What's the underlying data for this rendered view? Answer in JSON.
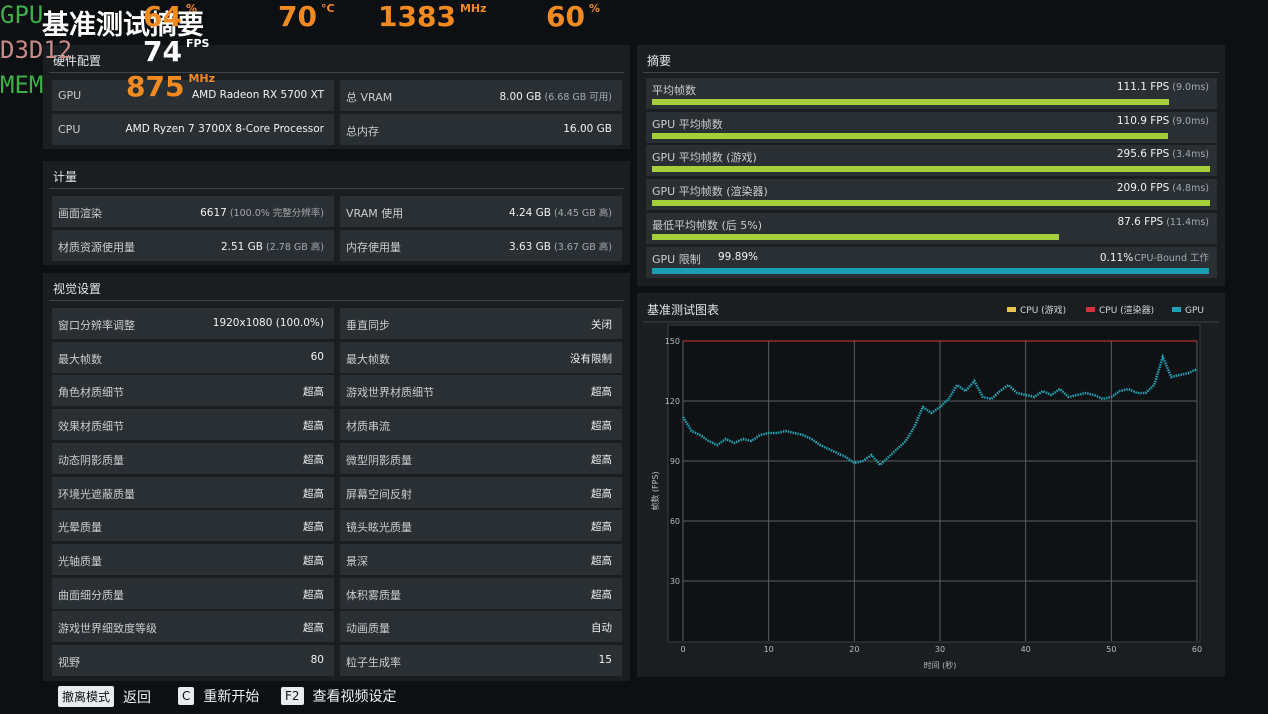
{
  "title": "基准测试摘要",
  "overlay": {
    "rows": [
      {
        "label": "GPU",
        "label_color": "#3fae4a",
        "items": [
          {
            "value": "64",
            "unit": "%",
            "color": "#f28a22"
          },
          {
            "value": "70",
            "unit": "°C",
            "color": "#f28a22"
          },
          {
            "value": "1383",
            "unit": "MHz",
            "color": "#f28a22"
          },
          {
            "value": "60",
            "unit": "%",
            "color": "#f28a22"
          }
        ]
      },
      {
        "label": "D3D12",
        "label_color": "#c98a8a",
        "items": [
          {
            "value": "74",
            "unit": "FPS",
            "color": "#ffffff"
          }
        ]
      },
      {
        "label": "MEM",
        "label_color": "#3fae4a",
        "items": [
          {
            "value": "875",
            "unit": "MHz",
            "color": "#f28a22"
          }
        ]
      }
    ]
  },
  "panels": [
    {
      "title": "硬件配置",
      "rows": [
        [
          {
            "label": "GPU",
            "value": "AMD Radeon RX 5700 XT"
          },
          {
            "label": "总 VRAM",
            "value": "8.00 GB",
            "note": "(6.68 GB 可用)"
          }
        ],
        [
          {
            "label": "CPU",
            "value": "AMD Ryzen 7 3700X 8-Core Processor"
          },
          {
            "label": "总内存",
            "value": "16.00 GB"
          }
        ]
      ]
    },
    {
      "title": "计量",
      "rows": [
        [
          {
            "label": "画面渲染",
            "value": "6617",
            "note": "(100.0% 完整分辨率)"
          },
          {
            "label": "VRAM 使用",
            "value": "4.24 GB",
            "note": "(4.45 GB 高)"
          }
        ],
        [
          {
            "label": "材质资源使用量",
            "value": "2.51 GB",
            "note": "(2.78 GB 高)"
          },
          {
            "label": "内存使用量",
            "value": "3.63 GB",
            "note": "(3.67 GB 高)"
          }
        ]
      ]
    },
    {
      "title": "视觉设置",
      "rows": [
        [
          {
            "label": "窗口分辨率调整",
            "value": "1920x1080 (100.0%)"
          },
          {
            "label": "垂直同步",
            "value": "关闭"
          }
        ],
        [
          {
            "label": "最大帧数",
            "value": "60"
          },
          {
            "label": "最大帧数",
            "value": "没有限制"
          }
        ],
        [
          {
            "label": "角色材质细节",
            "value": "超高"
          },
          {
            "label": "游戏世界材质细节",
            "value": "超高"
          }
        ],
        [
          {
            "label": "效果材质细节",
            "value": "超高"
          },
          {
            "label": "材质串流",
            "value": "超高"
          }
        ],
        [
          {
            "label": "动态阴影质量",
            "value": "超高"
          },
          {
            "label": "微型阴影质量",
            "value": "超高"
          }
        ],
        [
          {
            "label": "环境光遮蔽质量",
            "value": "超高"
          },
          {
            "label": "屏幕空间反射",
            "value": "超高"
          }
        ],
        [
          {
            "label": "光晕质量",
            "value": "超高"
          },
          {
            "label": "镜头眩光质量",
            "value": "超高"
          }
        ],
        [
          {
            "label": "光轴质量",
            "value": "超高"
          },
          {
            "label": "景深",
            "value": "超高"
          }
        ],
        [
          {
            "label": "曲面细分质量",
            "value": "超高"
          },
          {
            "label": "体积雾质量",
            "value": "超高"
          }
        ],
        [
          {
            "label": "游戏世界细致度等级",
            "value": "超高"
          },
          {
            "label": "动画质量",
            "value": "自动"
          }
        ],
        [
          {
            "label": "视野",
            "value": "80"
          },
          {
            "label": "粒子生成率",
            "value": "15"
          }
        ]
      ]
    }
  ],
  "summary": {
    "title": "摘要",
    "xlim": [
      0,
      120
    ],
    "color": "#a4cf3a",
    "rows": [
      {
        "label": "平均帧数",
        "value": 111.1,
        "value_label": "111.1 FPS",
        "note": "(9.0ms)"
      },
      {
        "label": "GPU 平均帧数",
        "value": 110.9,
        "value_label": "110.9 FPS",
        "note": "(9.0ms)"
      },
      {
        "label": "GPU 平均帧数 (游戏)",
        "value": 295.6,
        "value_label": "295.6 FPS",
        "note": "(3.4ms)"
      },
      {
        "label": "GPU 平均帧数 (渲染器)",
        "value": 209.0,
        "value_label": "209.0 FPS",
        "note": "(4.8ms)"
      },
      {
        "label": "最低平均帧数 (后 5%)",
        "value": 87.6,
        "value_label": "87.6 FPS",
        "note": "(11.4ms)"
      }
    ],
    "gpu_limit": {
      "label": "GPU 限制",
      "value": 99.89,
      "value_label": "99.89%",
      "other_label": "0.11%",
      "other_text": "CPU-Bound 工作",
      "xlim": [
        0,
        100
      ],
      "color": "#1b9db3"
    }
  },
  "chart_data": {
    "type": "scatter",
    "title": "基准测试图表",
    "x_label": "时间 (秒)",
    "y_label": "帧数 (FPS)",
    "xlim": [
      0,
      60
    ],
    "xticks": [
      0,
      10,
      20,
      30,
      40,
      50,
      60
    ],
    "ylim": [
      0,
      150
    ],
    "yticks": [
      30,
      60,
      90,
      120,
      150
    ],
    "grid": true,
    "series": [
      {
        "name": "CPU (游戏)",
        "color": "#e6c34a",
        "x": [],
        "values": []
      },
      {
        "name": "CPU (渲染器)",
        "color": "#d8303d",
        "x": [
          0,
          60
        ],
        "values": [
          150,
          150
        ]
      },
      {
        "name": "GPU",
        "color": "#1fa3b5",
        "x": [
          0,
          1,
          2,
          3,
          4,
          5,
          6,
          7,
          8,
          9,
          10,
          11,
          12,
          13,
          14,
          15,
          16,
          17,
          18,
          19,
          20,
          21,
          22,
          23,
          24,
          25,
          26,
          27,
          28,
          29,
          30,
          31,
          32,
          33,
          34,
          35,
          36,
          37,
          38,
          39,
          40,
          41,
          42,
          43,
          44,
          45,
          46,
          47,
          48,
          49,
          50,
          51,
          52,
          53,
          54,
          55,
          56,
          57,
          58,
          59,
          60
        ],
        "values": [
          112,
          105,
          103,
          100,
          98,
          101,
          99,
          101,
          100,
          103,
          104,
          104,
          105,
          104,
          103,
          101,
          98,
          96,
          94,
          92,
          89,
          90,
          93,
          88,
          92,
          96,
          100,
          107,
          117,
          114,
          117,
          121,
          128,
          125,
          130,
          122,
          121,
          125,
          128,
          124,
          123,
          122,
          125,
          123,
          126,
          122,
          123,
          124,
          123,
          121,
          122,
          125,
          126,
          124,
          124,
          128,
          142,
          132,
          133,
          134,
          136
        ]
      }
    ]
  },
  "footer": {
    "keys": [
      {
        "key": "撤离模式",
        "action": "返回"
      },
      {
        "key": "C",
        "action": "重新开始"
      },
      {
        "key": "F2",
        "action": "查看视频设定"
      }
    ]
  }
}
